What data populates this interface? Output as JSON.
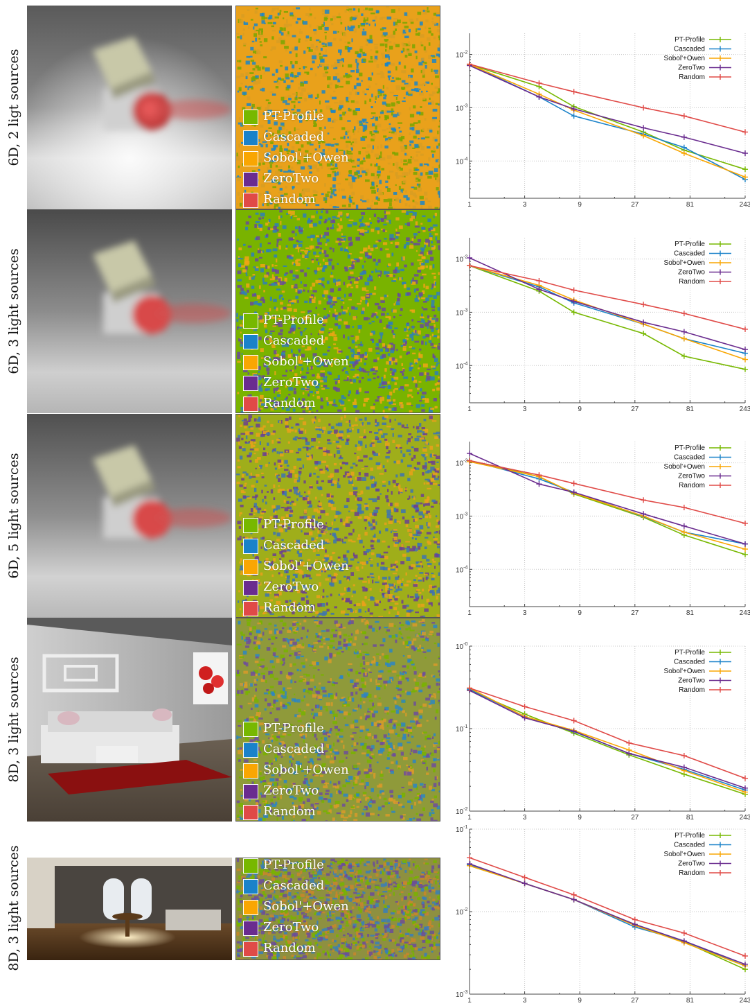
{
  "colors": {
    "PT-Profile": "#77b800",
    "Cascaded": "#1a82c9",
    "Sobol'+Owen": "#f9a602",
    "ZeroTwo": "#6a2c8f",
    "Random": "#e04a47"
  },
  "rows": [
    {
      "label": "6D, 2 ligt sources",
      "map_base": "#e9a11b",
      "map_mix": [
        "#1b86c8",
        "#7aa600",
        "#d89e22"
      ]
    },
    {
      "label": "6D, 3 light sources",
      "map_base": "#79b300",
      "map_mix": [
        "#f0a515",
        "#2e7fb8",
        "#6a4a9a"
      ]
    },
    {
      "label": "6D, 5 light sources",
      "map_base": "#9fae1a",
      "map_mix": [
        "#e9a11b",
        "#3d74b2",
        "#6b3f92"
      ]
    },
    {
      "label": "8D, 3 light sources",
      "map_base": "#8f9a3a",
      "map_mix": [
        "#6f4e9b",
        "#2d86c3",
        "#d99a2a",
        "#79b300"
      ]
    },
    {
      "label": "8D, 3 light sources",
      "map_base": "#8e9040",
      "map_mix": [
        "#6b4d9a",
        "#c9862c",
        "#3a7fb8",
        "#79b300"
      ]
    }
  ],
  "legend": [
    "PT-Profile",
    "Cascaded",
    "Sobol'+Owen",
    "ZeroTwo",
    "Random"
  ],
  "chart_data": [
    {
      "type": "line",
      "xscale": "log3",
      "yscale": "log",
      "x": [
        1,
        4,
        8,
        32,
        72,
        243
      ],
      "xticks": [
        "1",
        "3",
        "9",
        "27",
        "81",
        "243"
      ],
      "yticks": [
        "10-2",
        "10-3",
        "10-4"
      ],
      "ylim": [
        2e-05,
        0.025
      ],
      "legend_position": "top-right",
      "series": [
        {
          "name": "PT-Profile",
          "values": [
            0.0065,
            0.0025,
            0.00105,
            0.00035,
            0.00016,
            7e-05
          ]
        },
        {
          "name": "Cascaded",
          "values": [
            0.0065,
            0.0016,
            0.0007,
            0.00032,
            0.00018,
            4.5e-05
          ]
        },
        {
          "name": "Sobol'+Owen",
          "values": [
            0.0065,
            0.0018,
            0.0009,
            0.0003,
            0.00014,
            5e-05
          ]
        },
        {
          "name": "ZeroTwo",
          "values": [
            0.0062,
            0.0016,
            0.00095,
            0.00042,
            0.00028,
            0.00014
          ]
        },
        {
          "name": "Random",
          "values": [
            0.0066,
            0.0029,
            0.002,
            0.001,
            0.0007,
            0.00035
          ]
        }
      ]
    },
    {
      "type": "line",
      "xscale": "log3",
      "yscale": "log",
      "x": [
        1,
        4,
        8,
        32,
        72,
        243
      ],
      "xticks": [
        "1",
        "3",
        "9",
        "27",
        "81",
        "243"
      ],
      "yticks": [
        "10-2",
        "10-3",
        "10-4"
      ],
      "ylim": [
        2e-05,
        0.025
      ],
      "legend_position": "top-right",
      "series": [
        {
          "name": "PT-Profile",
          "values": [
            0.0075,
            0.0025,
            0.001,
            0.0004,
            0.00015,
            8.5e-05
          ]
        },
        {
          "name": "Cascaded",
          "values": [
            0.0075,
            0.003,
            0.0015,
            0.0006,
            0.00032,
            0.00017
          ]
        },
        {
          "name": "Sobol'+Owen",
          "values": [
            0.0075,
            0.0032,
            0.0017,
            0.0006,
            0.00032,
            0.00013
          ]
        },
        {
          "name": "ZeroTwo",
          "values": [
            0.0105,
            0.0027,
            0.0016,
            0.00065,
            0.00043,
            0.0002
          ]
        },
        {
          "name": "Random",
          "values": [
            0.0075,
            0.0039,
            0.0026,
            0.0014,
            0.00095,
            0.00048
          ]
        }
      ]
    },
    {
      "type": "line",
      "xscale": "log3",
      "yscale": "log",
      "x": [
        1,
        4,
        8,
        32,
        72,
        243
      ],
      "xticks": [
        "1",
        "3",
        "9",
        "27",
        "81",
        "243"
      ],
      "yticks": [
        "10-2",
        "10-3",
        "10-4"
      ],
      "ylim": [
        2e-05,
        0.025
      ],
      "legend_position": "top-right",
      "series": [
        {
          "name": "PT-Profile",
          "values": [
            0.011,
            0.0055,
            0.0026,
            0.00095,
            0.00044,
            0.00019
          ]
        },
        {
          "name": "Cascaded",
          "values": [
            0.011,
            0.005,
            0.0028,
            0.00098,
            0.0005,
            0.0003
          ]
        },
        {
          "name": "Sobol'+Owen",
          "values": [
            0.0105,
            0.0055,
            0.0027,
            0.001,
            0.0005,
            0.00024
          ]
        },
        {
          "name": "ZeroTwo",
          "values": [
            0.015,
            0.004,
            0.0028,
            0.0011,
            0.00065,
            0.0003
          ]
        },
        {
          "name": "Random",
          "values": [
            0.011,
            0.0059,
            0.0041,
            0.002,
            0.00145,
            0.00073
          ]
        }
      ]
    },
    {
      "type": "line",
      "xscale": "log3",
      "yscale": "log",
      "x": [
        1,
        3,
        8,
        24,
        72,
        243
      ],
      "xticks": [
        "1",
        "3",
        "9",
        "27",
        "81",
        "243"
      ],
      "yticks": [
        "10-0",
        "10-1",
        "10-2"
      ],
      "ylim": [
        0.01,
        1
      ],
      "legend_position": "top-right",
      "series": [
        {
          "name": "PT-Profile",
          "values": [
            0.29,
            0.15,
            0.088,
            0.048,
            0.028,
            0.016
          ]
        },
        {
          "name": "Cascaded",
          "values": [
            0.3,
            0.14,
            0.092,
            0.05,
            0.032,
            0.018
          ]
        },
        {
          "name": "Sobol'+Owen",
          "values": [
            0.31,
            0.14,
            0.095,
            0.055,
            0.031,
            0.017
          ]
        },
        {
          "name": "ZeroTwo",
          "values": [
            0.29,
            0.135,
            0.093,
            0.05,
            0.034,
            0.019
          ]
        },
        {
          "name": "Random",
          "values": [
            0.31,
            0.185,
            0.125,
            0.067,
            0.047,
            0.025
          ]
        }
      ]
    },
    {
      "type": "line",
      "xscale": "log3",
      "yscale": "log",
      "x": [
        1,
        3,
        8,
        27,
        72,
        243
      ],
      "xticks": [
        "1",
        "3",
        "9",
        "27",
        "81",
        "243"
      ],
      "yticks": [
        "10-1",
        "10-2",
        "10-3"
      ],
      "ylim": [
        0.001,
        0.1
      ],
      "legend_position": "top-right",
      "series": [
        {
          "name": "PT-Profile",
          "values": [
            0.036,
            0.022,
            0.014,
            0.007,
            0.0043,
            0.002
          ]
        },
        {
          "name": "Cascaded",
          "values": [
            0.037,
            0.022,
            0.014,
            0.0065,
            0.0044,
            0.0022
          ]
        },
        {
          "name": "Sobol'+Owen",
          "values": [
            0.036,
            0.022,
            0.014,
            0.0068,
            0.0042,
            0.0022
          ]
        },
        {
          "name": "ZeroTwo",
          "values": [
            0.038,
            0.022,
            0.014,
            0.007,
            0.0044,
            0.0023
          ]
        },
        {
          "name": "Random",
          "values": [
            0.045,
            0.026,
            0.016,
            0.008,
            0.0055,
            0.0029
          ]
        }
      ]
    }
  ]
}
